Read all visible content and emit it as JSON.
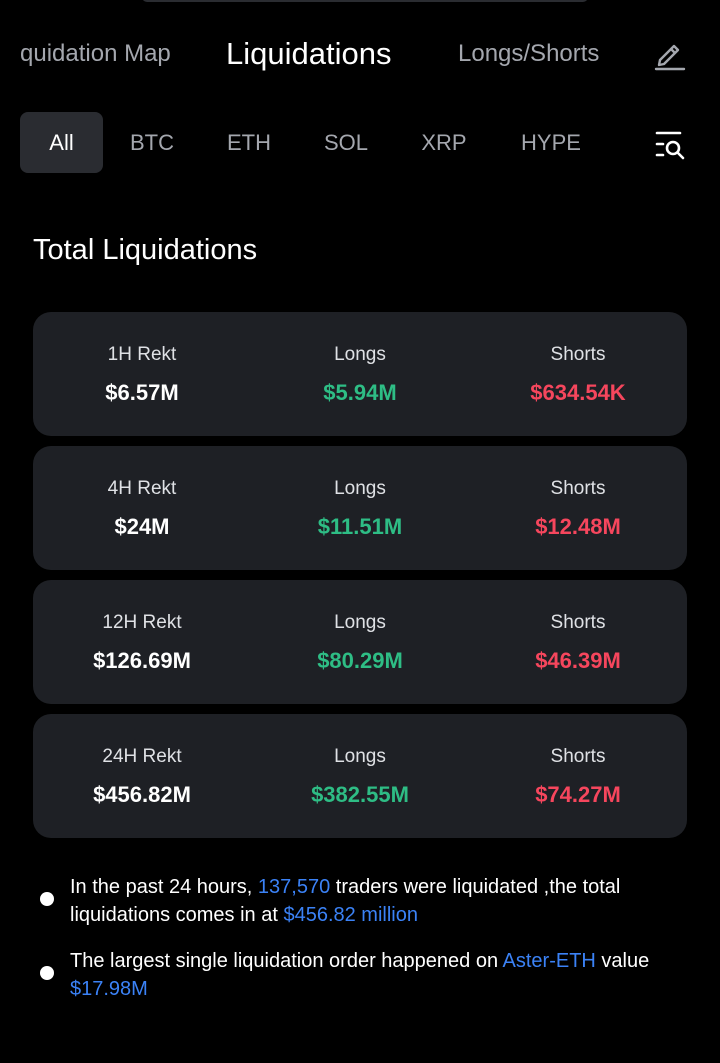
{
  "nav": {
    "tabs": [
      {
        "label": "quidation Map",
        "active": false
      },
      {
        "label": "Liquidations",
        "active": true
      },
      {
        "label": "Longs/Shorts",
        "active": false
      }
    ],
    "edit_icon": "pencil-icon"
  },
  "filters": {
    "coins": [
      "All",
      "BTC",
      "ETH",
      "SOL",
      "XRP",
      "HYPE"
    ],
    "selected": "All",
    "filter_icon": "list-search-icon"
  },
  "section_title": "Total Liquidations",
  "rows": [
    {
      "period": "1H Rekt",
      "total": "$6.57M",
      "longs_label": "Longs",
      "longs": "$5.94M",
      "shorts_label": "Shorts",
      "shorts": "$634.54K"
    },
    {
      "period": "4H Rekt",
      "total": "$24M",
      "longs_label": "Longs",
      "longs": "$11.51M",
      "shorts_label": "Shorts",
      "shorts": "$12.48M"
    },
    {
      "period": "12H Rekt",
      "total": "$126.69M",
      "longs_label": "Longs",
      "longs": "$80.29M",
      "shorts_label": "Shorts",
      "shorts": "$46.39M"
    },
    {
      "period": "24H Rekt",
      "total": "$456.82M",
      "longs_label": "Longs",
      "longs": "$382.55M",
      "shorts_label": "Shorts",
      "shorts": "$74.27M"
    }
  ],
  "notes": {
    "n1_a": "In the past 24 hours, ",
    "n1_count": "137,570",
    "n1_b": " traders were liquidated ,the total liquidations comes in at ",
    "n1_amount": "$456.82 million",
    "n2_a": "The largest single liquidation order happened on ",
    "n2_pair": "Aster-ETH",
    "n2_b": " value ",
    "n2_value": "$17.98M"
  },
  "colors": {
    "background": "#000000",
    "card": "#1e2025",
    "long_green": "#2ebd85",
    "short_red": "#f6465d",
    "link_blue": "#3b82f6"
  }
}
